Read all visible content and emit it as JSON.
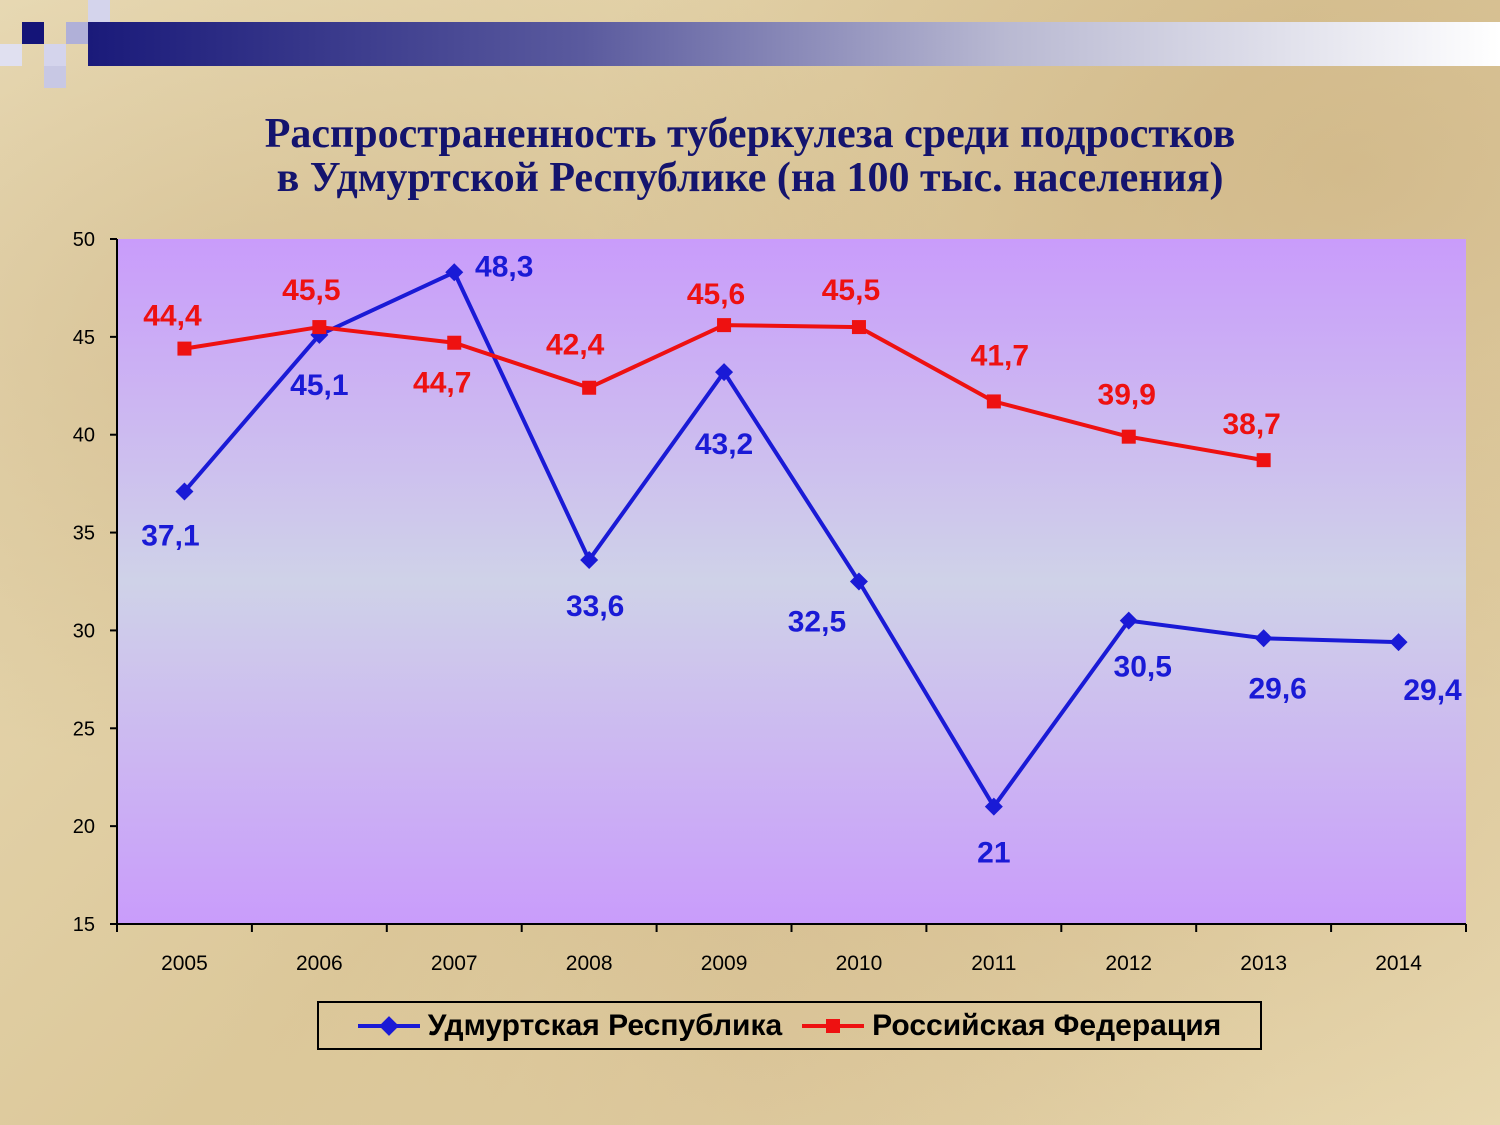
{
  "title_line1": "Распространенность туберкулеза среди подростков",
  "title_line2": "в Удмуртской Республике (на 100 тыс. населения)",
  "chart_data": {
    "type": "line",
    "categories": [
      "2005",
      "2006",
      "2007",
      "2008",
      "2009",
      "2010",
      "2011",
      "2012",
      "2013",
      "2014"
    ],
    "ylim": [
      15,
      50
    ],
    "yticks": [
      15,
      20,
      25,
      30,
      35,
      40,
      45,
      50
    ],
    "grid": false,
    "legend_position": "bottom",
    "series": [
      {
        "name": "Удмуртская Республика",
        "color": "#1a1ad6",
        "marker": "diamond",
        "values": [
          37.1,
          45.1,
          48.3,
          33.6,
          43.2,
          32.5,
          21,
          30.5,
          29.6,
          29.4
        ],
        "labels": [
          "37,1",
          "45,1",
          "48,3",
          "33,6",
          "43,2",
          "32,5",
          "21",
          "30,5",
          "29,6",
          "29,4"
        ]
      },
      {
        "name": "Российская Федерация",
        "color": "#ee1111",
        "marker": "square",
        "values": [
          44.4,
          45.5,
          44.7,
          42.4,
          45.6,
          45.5,
          41.7,
          39.9,
          38.7,
          null
        ],
        "labels": [
          "44,4",
          "45,5",
          "44,7",
          "42,4",
          "45,6",
          "45,5",
          "41,7",
          "39,9",
          "38,7",
          ""
        ]
      }
    ]
  }
}
